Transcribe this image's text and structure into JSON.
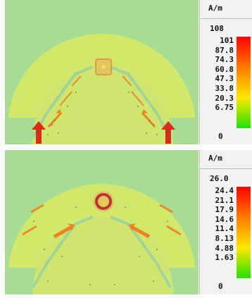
{
  "panels": [
    {
      "unit": "A/m",
      "max_label": "108",
      "ticks": [
        "101",
        "87.8",
        "74.3",
        "60.8",
        "47.3",
        "33.8",
        "20.3",
        "6.75"
      ],
      "min_label": "0"
    },
    {
      "unit": "A/m",
      "max_label": "26.0",
      "ticks": [
        "24.4",
        "21.1",
        "17.9",
        "14.6",
        "11.4",
        "8.13",
        "4.88",
        "1.63"
      ],
      "min_label": "0"
    }
  ],
  "colors": {
    "background": "#a6dc94",
    "structure": "#d2e86a",
    "hot": "#d62c1a",
    "warm": "#f07f1c",
    "colorbar": [
      "#ff0000",
      "#ff7a00",
      "#ffe800",
      "#22e000"
    ]
  },
  "icons": {
    "current_arrow": "current-arrow-icon"
  }
}
